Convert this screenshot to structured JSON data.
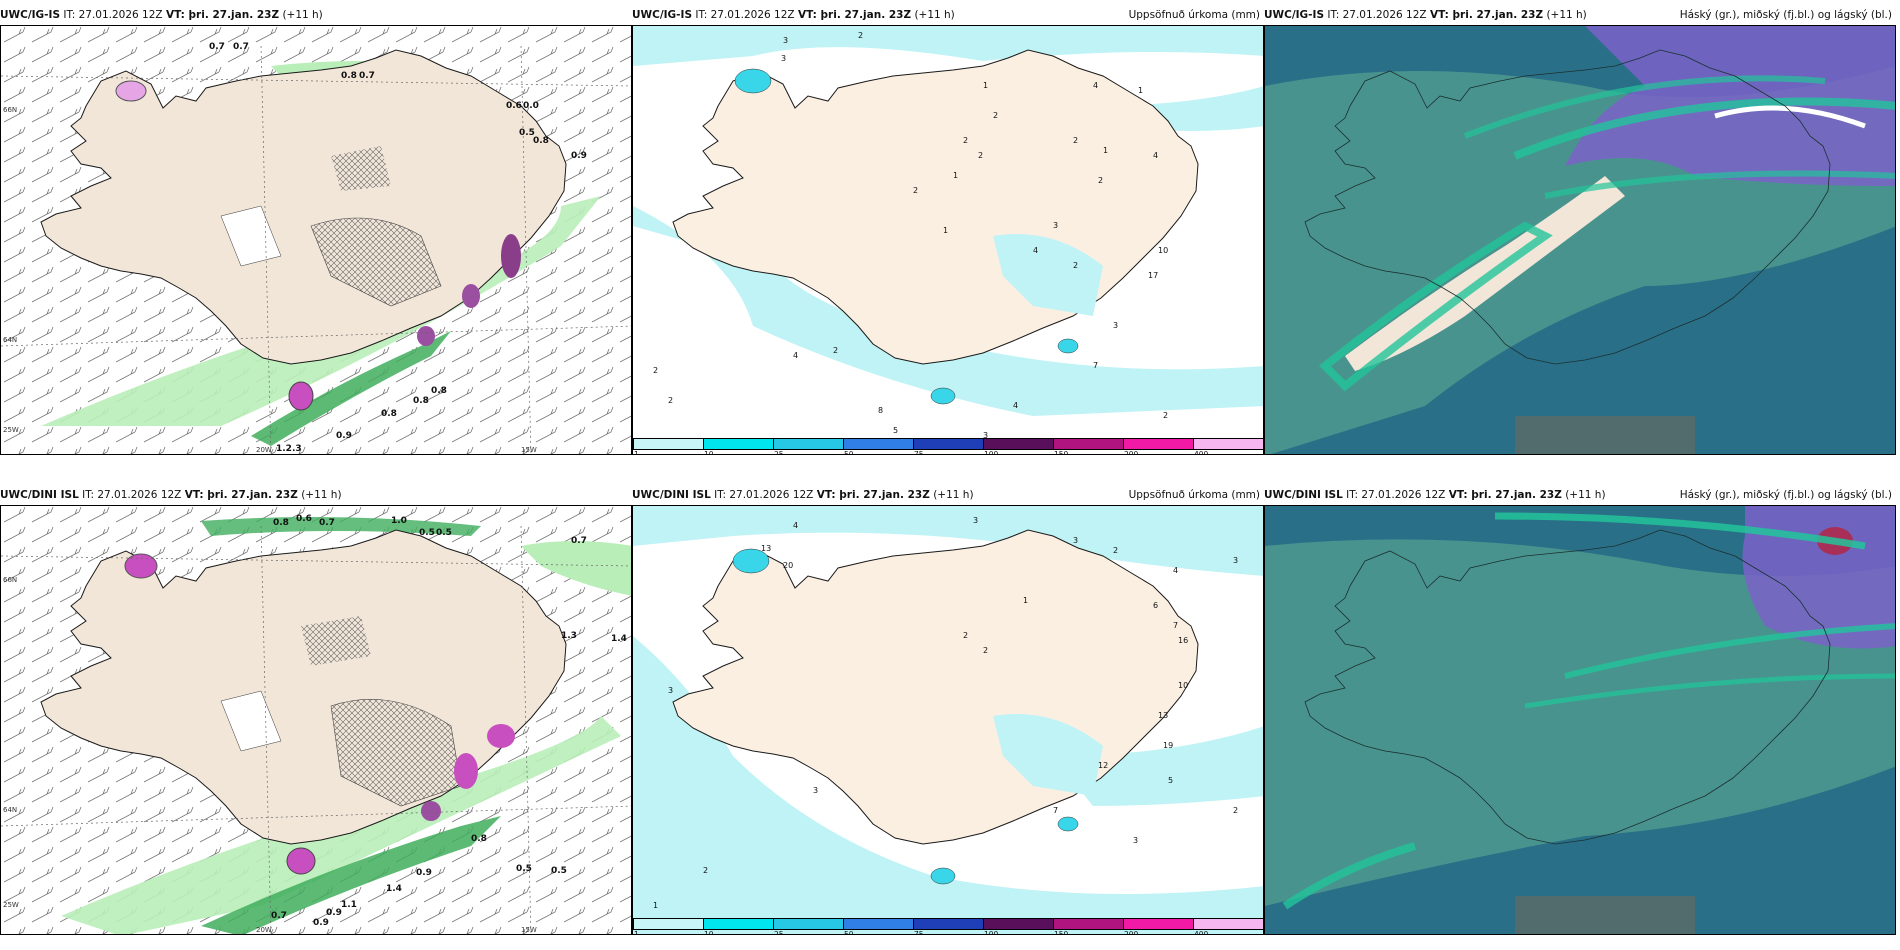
{
  "colors": {
    "land": "#f2e6d8",
    "coast": "#1a1a1a",
    "precip_light": "#bff3f5",
    "precip_mid": "#38d6e8",
    "cloud_high": "#2a6f88",
    "cloud_mid": "#4f9a8f",
    "cloud_low": "#7a63c9",
    "green_band": "#22c49a"
  },
  "panels": [
    {
      "run": "UWC/IG-IS",
      "it": "IT: 27.01.2026 12Z",
      "vt": "VT: þri. 27.jan. 23Z",
      "lead": "(+11 h)",
      "right": "",
      "lat_labels": [
        "66N",
        "64N",
        "25W"
      ],
      "lon_labels": [
        "20W",
        "15W"
      ],
      "values": [
        "0.7",
        "0.7",
        "0.8",
        "0.7",
        "0.6",
        "0.0",
        "0.5",
        "0.8",
        "0.9",
        "0.8",
        "0.8",
        "0.8",
        "0.9",
        "1.2.3"
      ]
    },
    {
      "run": "UWC/IG-IS",
      "it": "IT: 27.01.2026 12Z",
      "vt": "VT: þri. 27.jan. 23Z",
      "lead": "(+11 h)",
      "right": "Uppsöfnuð úrkoma (mm)",
      "values": [
        "3",
        "2",
        "3",
        "1",
        "2",
        "4",
        "1",
        "2",
        "2",
        "1",
        "2",
        "1",
        "2",
        "1",
        "4",
        "2",
        "3",
        "4",
        "10",
        "17",
        "2",
        "3",
        "4",
        "2",
        "7",
        "4",
        "2",
        "8",
        "5",
        "3",
        "2",
        "2"
      ]
    },
    {
      "run": "UWC/IG-IS",
      "it": "IT: 27.01.2026 12Z",
      "vt": "VT: þri. 27.jan. 23Z",
      "lead": "(+11 h)",
      "right": "Háský (gr.), miðský (fj.bl.) og lágský (bl.)"
    },
    {
      "run": "UWC/DINI ISL",
      "it": "IT: 27.01.2026 12Z",
      "vt": "VT: þri. 27.jan. 23Z",
      "lead": "(+11 h)",
      "right": "",
      "lat_labels": [
        "66N",
        "64N",
        "25W"
      ],
      "lon_labels": [
        "20W",
        "15W"
      ],
      "values": [
        "0.8",
        "0.7",
        "0.6",
        "1.0",
        "0.5",
        "0.5",
        "0.7",
        "1.3",
        "1.4",
        "0.8",
        "0.5",
        "0.5",
        "0.9",
        "0.7",
        "0.9",
        "1.1",
        "0.9",
        "1.4"
      ]
    },
    {
      "run": "UWC/DINI ISL",
      "it": "IT: 27.01.2026 12Z",
      "vt": "VT: þri. 27.jan. 23Z",
      "lead": "(+11 h)",
      "right": "Uppsöfnuð úrkoma (mm)",
      "values": [
        "13",
        "20",
        "4",
        "3",
        "3",
        "2",
        "3",
        "1",
        "4",
        "2",
        "2",
        "6",
        "7",
        "16",
        "13",
        "10",
        "19",
        "12",
        "5",
        "3",
        "7",
        "3",
        "1",
        "2",
        "3",
        "2"
      ]
    },
    {
      "run": "UWC/DINI ISL",
      "it": "IT: 27.01.2026 12Z",
      "vt": "VT: þri. 27.jan. 23Z",
      "lead": "(+11 h)",
      "right": "Háský (gr.), miðský (fj.bl.) og lágský (bl.)"
    }
  ],
  "legend": {
    "labels": [
      "1",
      "10",
      "25",
      "50",
      "75",
      "100",
      "150",
      "200",
      "400"
    ],
    "colors": [
      "#c8f6f8",
      "#00e5ee",
      "#27c8e6",
      "#2f7fe6",
      "#1f3fb8",
      "#5a0f5a",
      "#b0157f",
      "#f01aa6",
      "#f6b6f0"
    ]
  }
}
